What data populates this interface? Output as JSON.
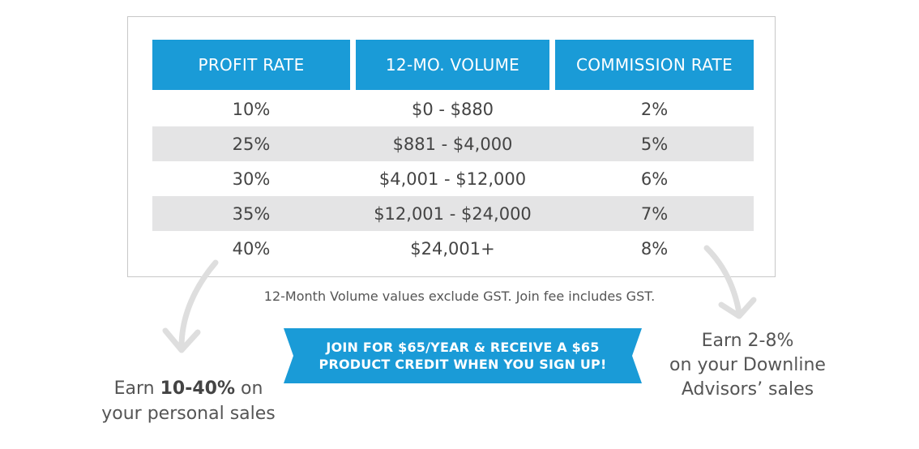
{
  "table": {
    "headers": [
      "PROFIT RATE",
      "12-MO. VOLUME",
      "COMMISSION RATE"
    ],
    "rows": [
      [
        "10%",
        "$0 - $880",
        "2%"
      ],
      [
        "25%",
        "$881 - $4,000",
        "5%"
      ],
      [
        "30%",
        "$4,001 - $12,000",
        "6%"
      ],
      [
        "35%",
        "$12,001 - $24,000",
        "7%"
      ],
      [
        "40%",
        "$24,001+",
        "8%"
      ]
    ]
  },
  "note": "12-Month Volume values exclude GST. Join fee includes GST.",
  "banner": {
    "line1": "JOIN FOR $65/YEAR & RECEIVE A $65",
    "line2": "PRODUCT CREDIT WHEN YOU SIGN UP!"
  },
  "left_caption": {
    "prefix": "Earn ",
    "bold": "10-40%",
    "suffix": " on",
    "line2": "your personal sales"
  },
  "right_caption": {
    "line1": "Earn 2-8%",
    "line2": "on your Downline",
    "line3": "Advisors’ sales"
  },
  "colors": {
    "header_blue": "#1a9bd7",
    "row_shade": "#e4e4e5",
    "arrow_gray": "#dedede"
  },
  "icons": [
    "curved-arrow-down-left-icon",
    "curved-arrow-down-right-icon"
  ]
}
